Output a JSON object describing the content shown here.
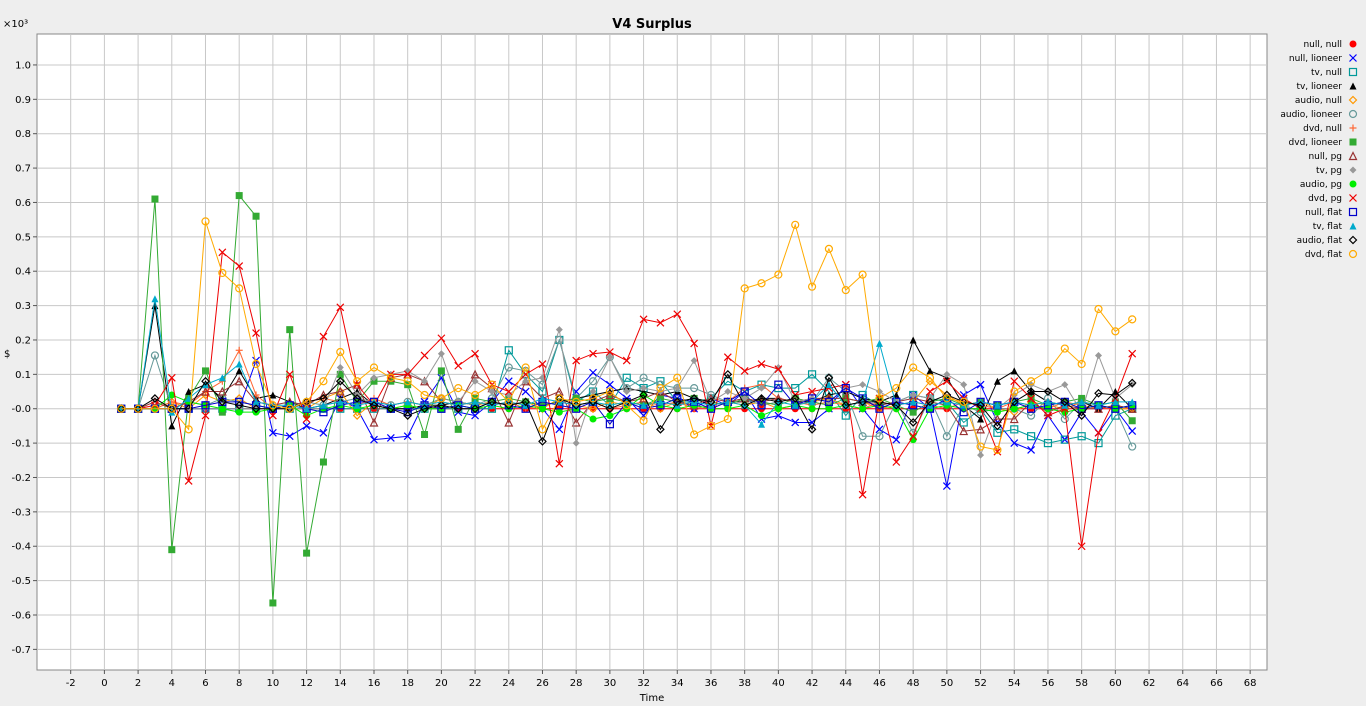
{
  "chart_data": {
    "type": "line",
    "title": "V4 Surplus",
    "xlabel": "Time",
    "ylabel": "$",
    "y_multiplier_label": "×10³",
    "xlim": [
      -4,
      69
    ],
    "ylim": [
      -0.76,
      1.09
    ],
    "x_ticks": [
      -2,
      0,
      2,
      4,
      6,
      8,
      10,
      12,
      14,
      16,
      18,
      20,
      22,
      24,
      26,
      28,
      30,
      32,
      34,
      36,
      38,
      40,
      42,
      44,
      46,
      48,
      50,
      52,
      54,
      56,
      58,
      60,
      62,
      64,
      66,
      68
    ],
    "y_ticks": [
      -0.7,
      -0.6,
      -0.5,
      -0.4,
      -0.3,
      -0.2,
      -0.1,
      0.0,
      0.1,
      0.2,
      0.3,
      0.4,
      0.5,
      0.6,
      0.7,
      0.8,
      0.9,
      1.0
    ],
    "y_tick_labels": [
      "-0.7",
      "-0.6",
      "-0.5",
      "-0.4",
      "-0.3",
      "-0.2",
      "-0.1",
      "-0.0",
      "0.1",
      "0.2",
      "0.3",
      "0.4",
      "0.5",
      "0.6",
      "0.7",
      "0.8",
      "0.9",
      "1.0"
    ],
    "grid": true,
    "legend_position": "right",
    "series": [
      {
        "name": "null, null",
        "color": "#ff0000",
        "marker": "circle-filled",
        "x_start": 1,
        "values": [
          0,
          0,
          0,
          0,
          0,
          0,
          0,
          0,
          0,
          0,
          0,
          0,
          0,
          0,
          0,
          0,
          0,
          0,
          0,
          0,
          0,
          0,
          0,
          0,
          0,
          0,
          0,
          0,
          0,
          0,
          0,
          0,
          0,
          0,
          0,
          0,
          0,
          0,
          0,
          0,
          0,
          0,
          0,
          0,
          0,
          0,
          0,
          0,
          0,
          0,
          0,
          0,
          0,
          0,
          0,
          0,
          0,
          0,
          0,
          0,
          0
        ]
      },
      {
        "name": "null, lioneer",
        "color": "#0000ff",
        "marker": "x",
        "x_start": 1,
        "values": [
          0,
          0,
          0,
          0,
          0,
          0,
          0,
          0,
          0.14,
          -0.07,
          -0.08,
          -0.05,
          -0.07,
          0.03,
          0,
          -0.09,
          -0.085,
          -0.08,
          0.02,
          0.09,
          -0.01,
          -0.02,
          0.02,
          0.08,
          0.05,
          0,
          -0.06,
          0.05,
          0.105,
          0.07,
          0.03,
          -0.02,
          0.04,
          0.03,
          0,
          0.03,
          0.01,
          0.05,
          -0.03,
          -0.02,
          -0.04,
          -0.04,
          0,
          0.07,
          0,
          -0.06,
          -0.09,
          0.04,
          0,
          -0.225,
          0.04,
          0.07,
          -0.04,
          -0.1,
          -0.12,
          -0.02,
          -0.09,
          -0.01,
          -0.07,
          0,
          -0.065
        ]
      },
      {
        "name": "tv, null",
        "color": "#009999",
        "marker": "square",
        "x_start": 1,
        "values": [
          0,
          0,
          0,
          0,
          0,
          0,
          0,
          0,
          0,
          0,
          0,
          0,
          0,
          0,
          0,
          0,
          0,
          0,
          0,
          0,
          0,
          0,
          0,
          0.17,
          0.1,
          0.05,
          0.2,
          0.02,
          0.05,
          0.01,
          0.09,
          0.06,
          0.08,
          0.02,
          0.02,
          0.03,
          0.08,
          0.05,
          0.07,
          0.06,
          0.06,
          0.1,
          0.05,
          -0.02,
          0.04,
          0.01,
          0.02,
          0.04,
          0.03,
          0.02,
          -0.04,
          0,
          -0.07,
          -0.06,
          -0.08,
          -0.1,
          -0.09,
          -0.08,
          -0.1,
          -0.02,
          0
        ]
      },
      {
        "name": "tv, lioneer",
        "color": "#000000",
        "marker": "triangle-filled",
        "x_start": 1,
        "values": [
          0,
          0,
          0.3,
          -0.05,
          0.05,
          0.07,
          0.03,
          0.11,
          0.03,
          0.04,
          0.02,
          0,
          0.01,
          0.03,
          0.05,
          0.01,
          0,
          0,
          0.01,
          0.01,
          0.02,
          0.01,
          0.02,
          0.01,
          0.02,
          0.01,
          0.02,
          0.03,
          0.04,
          0.05,
          0.06,
          0.05,
          0.04,
          0.05,
          0.03,
          0.01,
          0.02,
          0.02,
          0.03,
          0.03,
          0.02,
          0.02,
          0.04,
          0.05,
          0.03,
          0.02,
          0.04,
          0.2,
          0.11,
          0.09,
          0.01,
          -0.03,
          0.08,
          0.11,
          0.05,
          0.02,
          0.01,
          0.02,
          0,
          0.05,
          0
        ]
      },
      {
        "name": "audio, null",
        "color": "#ff9900",
        "marker": "diamond",
        "x_start": 1,
        "values": [
          0,
          0,
          0,
          0.02,
          0,
          0.04,
          0.02,
          0.03,
          0,
          0,
          0,
          0,
          0.03,
          0.05,
          -0.02,
          0.02,
          0,
          0.01,
          0,
          0.03,
          0.02,
          0.01,
          0.02,
          0.01,
          0.02,
          0,
          0.03,
          0.01,
          0,
          0.02,
          0.01,
          0.02,
          0,
          0.02,
          0.01,
          0,
          0.02,
          0.01,
          0.02,
          0,
          0.01,
          0.02,
          0.03,
          0.01,
          0.02,
          0,
          0.01,
          0.02,
          0.08,
          0.04,
          0.01,
          0.02,
          0,
          -0.01,
          0.02,
          0.01,
          0,
          0.02,
          0.01,
          0,
          0
        ]
      },
      {
        "name": "audio, lioneer",
        "color": "#669999",
        "marker": "circle",
        "x_start": 1,
        "values": [
          0,
          0,
          0.155,
          0,
          0.02,
          0.01,
          0.03,
          0.02,
          0.01,
          0,
          0.01,
          0.02,
          0.01,
          0.02,
          0.03,
          0.02,
          0.01,
          0.02,
          0.01,
          0.03,
          0.02,
          0.01,
          0.03,
          0.12,
          0.11,
          0.07,
          0.2,
          0.03,
          0.08,
          0.15,
          0.06,
          0.09,
          0.07,
          0.06,
          0.06,
          0.04,
          0.02,
          0.03,
          0.01,
          0.02,
          0.03,
          0.02,
          0.09,
          0.05,
          -0.08,
          -0.08,
          0.02,
          -0.07,
          0.03,
          -0.08,
          0.01,
          -0.01,
          0,
          0,
          -0.02,
          0.03,
          -0.03,
          0.02,
          0.01,
          0,
          -0.11
        ]
      },
      {
        "name": "dvd, null",
        "color": "#ff6633",
        "marker": "plus",
        "x_start": 1,
        "values": [
          0,
          0,
          0,
          0.02,
          0.01,
          0.05,
          0.08,
          0.17,
          0.04,
          0,
          0,
          0.02,
          0.03,
          0.02,
          0.01,
          0.03,
          0.01,
          0.02,
          0.01,
          0,
          0.01,
          0.02,
          0.01,
          0.02,
          0,
          0.01,
          0.02,
          0.01,
          0.02,
          0,
          0.01,
          0.02,
          0.01,
          0.02,
          0,
          0.01,
          0.02,
          0.06,
          0.07,
          0.03,
          0.02,
          0.01,
          0.02,
          0.01,
          0,
          0.02,
          0.01,
          0.02,
          0.01,
          0,
          0.02,
          0.01,
          0,
          0.02,
          0.01,
          0,
          0.02,
          0.01,
          0,
          0.01,
          0
        ]
      },
      {
        "name": "dvd, lioneer",
        "color": "#33aa33",
        "marker": "square-filled",
        "x_start": 1,
        "values": [
          0,
          0,
          0.61,
          -0.41,
          0.03,
          0.11,
          -0.01,
          0.62,
          0.56,
          -0.565,
          0.23,
          -0.42,
          -0.155,
          0.1,
          0.02,
          0.08,
          0.08,
          0.07,
          -0.075,
          0.11,
          -0.06,
          0.03,
          0.02,
          0.03,
          0.02,
          0.01,
          0.02,
          0.03,
          0.02,
          0.03,
          0.02,
          0.01,
          0.03,
          0.02,
          0.03,
          0.02,
          0.01,
          0.03,
          0.02,
          0.01,
          0.03,
          0.02,
          0.01,
          0.03,
          0.02,
          0.03,
          0.01,
          -0.01,
          0.02,
          0.03,
          0.01,
          0.02,
          0.01,
          0.02,
          0.03,
          0.01,
          0.02,
          0.03,
          0.01,
          0.02,
          -0.035
        ]
      },
      {
        "name": "null, pg",
        "color": "#993333",
        "marker": "triangle",
        "x_start": 1,
        "values": [
          0,
          0,
          0.02,
          0,
          0.02,
          0.05,
          0.05,
          0.08,
          0.02,
          0.01,
          0.02,
          0.01,
          0.04,
          0.05,
          0.07,
          -0.04,
          0.09,
          0.1,
          0.08,
          0.02,
          0.01,
          0.1,
          0.06,
          -0.04,
          0.08,
          0.03,
          0.05,
          -0.04,
          0.02,
          0.04,
          0.02,
          0.03,
          0.05,
          0.02,
          0.01,
          0.03,
          0.02,
          0.03,
          0.02,
          0.03,
          0.02,
          0.03,
          0.03,
          0.03,
          0.02,
          0.01,
          0.02,
          0.03,
          0.02,
          0.01,
          -0.065,
          -0.06,
          -0.03,
          -0.03,
          0.02,
          -0.01,
          0.01,
          0,
          0,
          0.01,
          0
        ]
      },
      {
        "name": "tv, pg",
        "color": "#999999",
        "marker": "diamond-filled",
        "x_start": 1,
        "values": [
          0,
          0,
          0,
          0,
          0,
          0,
          0,
          0,
          0,
          0,
          0,
          0,
          0,
          0.12,
          0.04,
          0.09,
          0.1,
          0.11,
          0.08,
          0.16,
          0.02,
          0.08,
          0.05,
          0.04,
          0.08,
          0.09,
          0.23,
          -0.1,
          0.05,
          0.15,
          0.05,
          0.06,
          0.05,
          0.06,
          0.14,
          0.02,
          0.05,
          0.03,
          0.06,
          0.12,
          0.02,
          0.03,
          0.02,
          0.06,
          0.07,
          0.05,
          0.02,
          0.04,
          0.03,
          0.1,
          0.07,
          -0.135,
          0,
          0.04,
          0.07,
          0.05,
          0.07,
          -0.01,
          0.155,
          0.03,
          0.07
        ]
      },
      {
        "name": "audio, pg",
        "color": "#00ee00",
        "marker": "circle-filled",
        "x_start": 1,
        "values": [
          0,
          0,
          0,
          0.04,
          0.02,
          0.01,
          0,
          -0.01,
          -0.01,
          0,
          0.01,
          -0.02,
          0,
          0.01,
          0,
          0.01,
          0,
          0.01,
          0,
          0,
          0.01,
          0,
          0.01,
          0,
          0.01,
          0,
          -0.01,
          0,
          -0.03,
          -0.02,
          0,
          0.04,
          0.01,
          0,
          0.01,
          0,
          0,
          0.01,
          -0.02,
          0,
          0.01,
          0,
          0,
          0.01,
          0,
          0.01,
          0,
          -0.09,
          0,
          0.01,
          0,
          0,
          -0.01,
          0,
          0.01,
          0,
          -0.01,
          0,
          0.01,
          0,
          0.01
        ]
      },
      {
        "name": "dvd, pg",
        "color": "#ee0000",
        "marker": "x",
        "x_start": 1,
        "values": [
          0,
          0,
          0.01,
          0.09,
          -0.21,
          -0.02,
          0.455,
          0.415,
          0.22,
          -0.02,
          0.1,
          -0.03,
          0.21,
          0.295,
          0.07,
          0.01,
          0.1,
          0.1,
          0.155,
          0.205,
          0.125,
          0.16,
          0.07,
          0.05,
          0.1,
          0.13,
          -0.16,
          0.14,
          0.16,
          0.165,
          0.14,
          0.26,
          0.25,
          0.275,
          0.19,
          -0.05,
          0.15,
          0.11,
          0.13,
          0.115,
          0.04,
          0.05,
          0.06,
          0.07,
          -0.25,
          0.03,
          -0.155,
          -0.08,
          0.05,
          0.08,
          0.03,
          0,
          -0.125,
          0.08,
          0.03,
          -0.02,
          0,
          -0.4,
          -0.07,
          0.03,
          0.16
        ]
      },
      {
        "name": "null, flat",
        "color": "#0000cc",
        "marker": "square",
        "x_start": 1,
        "values": [
          0,
          0,
          0,
          0,
          0,
          0.01,
          0.02,
          0.02,
          0.01,
          0,
          0.01,
          0,
          -0.01,
          0.01,
          0.02,
          0.02,
          0,
          -0.01,
          0.01,
          0,
          0.01,
          0,
          0.02,
          0.01,
          0,
          0.02,
          0.01,
          0,
          0.02,
          -0.045,
          0.02,
          0,
          0.01,
          0.03,
          0.02,
          0,
          0.02,
          0.05,
          0.01,
          0.07,
          0.01,
          0.03,
          0.02,
          0.06,
          0.03,
          0,
          0.02,
          0.01,
          0,
          0.03,
          -0.01,
          0.02,
          0.01,
          0.02,
          0,
          0.01,
          0.02,
          0,
          0.01,
          0,
          0.01
        ]
      },
      {
        "name": "tv, flat",
        "color": "#00aacc",
        "marker": "triangle-filled",
        "x_start": 1,
        "values": [
          0,
          0,
          0.32,
          -0.01,
          0.03,
          0.07,
          0.09,
          0.13,
          0.02,
          0.01,
          0.01,
          0,
          0.01,
          0.02,
          0.01,
          0.02,
          0.01,
          0.02,
          0.01,
          0.02,
          0.01,
          0.02,
          0.01,
          0.02,
          0.01,
          0.03,
          0.02,
          0.01,
          0.02,
          0.01,
          0.02,
          0.01,
          0.02,
          0.01,
          0.02,
          0.01,
          0.02,
          0.01,
          -0.045,
          0.02,
          0.01,
          0.02,
          0.07,
          0.01,
          0.02,
          0.19,
          0.01,
          0.02,
          0.01,
          0.02,
          0.01,
          0.02,
          0.01,
          0.02,
          0.01,
          0.02,
          0.01,
          0.02,
          0.01,
          0.02,
          0.02
        ]
      },
      {
        "name": "audio, flat",
        "color": "#000000",
        "marker": "diamond",
        "x_start": 1,
        "values": [
          0,
          0,
          0.03,
          0,
          0,
          0.08,
          0.02,
          0.01,
          0,
          0,
          0,
          0.02,
          0.03,
          0.08,
          0.03,
          0.01,
          0,
          -0.02,
          0,
          0.01,
          0,
          0,
          0.02,
          0.01,
          0.02,
          -0.095,
          0.03,
          0.01,
          0.02,
          0,
          0.02,
          0.04,
          -0.06,
          0.02,
          0.03,
          0.02,
          0.1,
          0.01,
          0.03,
          0.02,
          0.03,
          -0.06,
          0.09,
          0.01,
          0.02,
          0.02,
          0.01,
          -0.04,
          0.02,
          0.04,
          0.02,
          0.01,
          -0.05,
          0.02,
          0.05,
          0.05,
          0.02,
          -0.02,
          0.045,
          0.04,
          0.075
        ]
      },
      {
        "name": "dvd, flat",
        "color": "#ffaa00",
        "marker": "circle",
        "x_start": 1,
        "values": [
          0,
          0,
          0,
          0,
          -0.06,
          0.545,
          0.395,
          0.35,
          0.13,
          0.01,
          0,
          0.02,
          0.08,
          0.165,
          0.08,
          0.12,
          0.09,
          0.08,
          0.04,
          0.03,
          0.06,
          0.04,
          0.07,
          0.02,
          0.12,
          -0.06,
          0.03,
          0.02,
          0.03,
          0.05,
          0.01,
          -0.035,
          0.06,
          0.09,
          -0.075,
          -0.05,
          -0.03,
          0.35,
          0.365,
          0.39,
          0.535,
          0.355,
          0.465,
          0.345,
          0.39,
          0.03,
          0.06,
          0.12,
          0.09,
          0.03,
          0.02,
          -0.11,
          -0.12,
          0.05,
          0.08,
          0.11,
          0.175,
          0.13,
          0.29,
          0.225,
          0.26
        ]
      }
    ]
  }
}
